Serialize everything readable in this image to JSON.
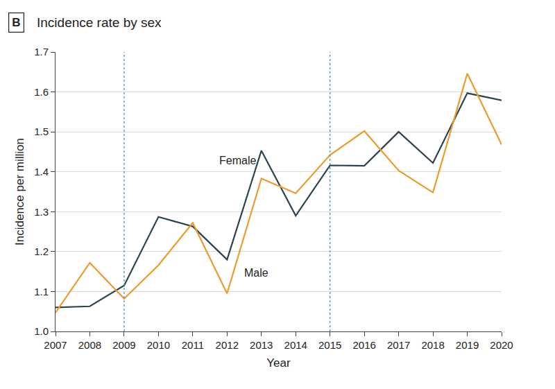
{
  "chart_data": {
    "type": "line",
    "panel": "B",
    "title": "Incidence rate by sex",
    "x_label": "Year",
    "y_label": "Incidence per million",
    "x": [
      2007,
      2008,
      2009,
      2010,
      2011,
      2012,
      2013,
      2014,
      2015,
      2016,
      2017,
      2018,
      2019,
      2020
    ],
    "series": [
      {
        "name": "Female",
        "color": "#2b4452",
        "values": [
          1.06,
          1.063,
          1.115,
          1.287,
          1.263,
          1.18,
          1.453,
          1.29,
          1.416,
          1.415,
          1.5,
          1.422,
          1.597,
          1.579
        ]
      },
      {
        "name": "Male",
        "color": "#ec9b2a",
        "values": [
          1.047,
          1.172,
          1.082,
          1.166,
          1.272,
          1.095,
          1.383,
          1.346,
          1.442,
          1.502,
          1.403,
          1.348,
          1.646,
          1.468
        ]
      }
    ],
    "annotations": [
      {
        "text": "Female",
        "x": 2012.3,
        "y": 1.428
      },
      {
        "text": "Male",
        "x": 2012.85,
        "y": 1.147
      }
    ],
    "reference_lines": {
      "x": [
        2009,
        2015
      ],
      "color": "#3a9cb8",
      "line_style": "dotted"
    },
    "xlim": [
      2007,
      2020
    ],
    "xticks": [
      2007,
      2008,
      2009,
      2010,
      2011,
      2012,
      2013,
      2014,
      2015,
      2016,
      2017,
      2018,
      2019,
      2020
    ],
    "ylim": [
      1.0,
      1.7
    ],
    "yticks": [
      {
        "value": 1.0,
        "label": "1.0"
      },
      1.1,
      1.2,
      1.3,
      1.4,
      1.5,
      1.6,
      1.7
    ],
    "grid": "y",
    "legend": "none"
  }
}
